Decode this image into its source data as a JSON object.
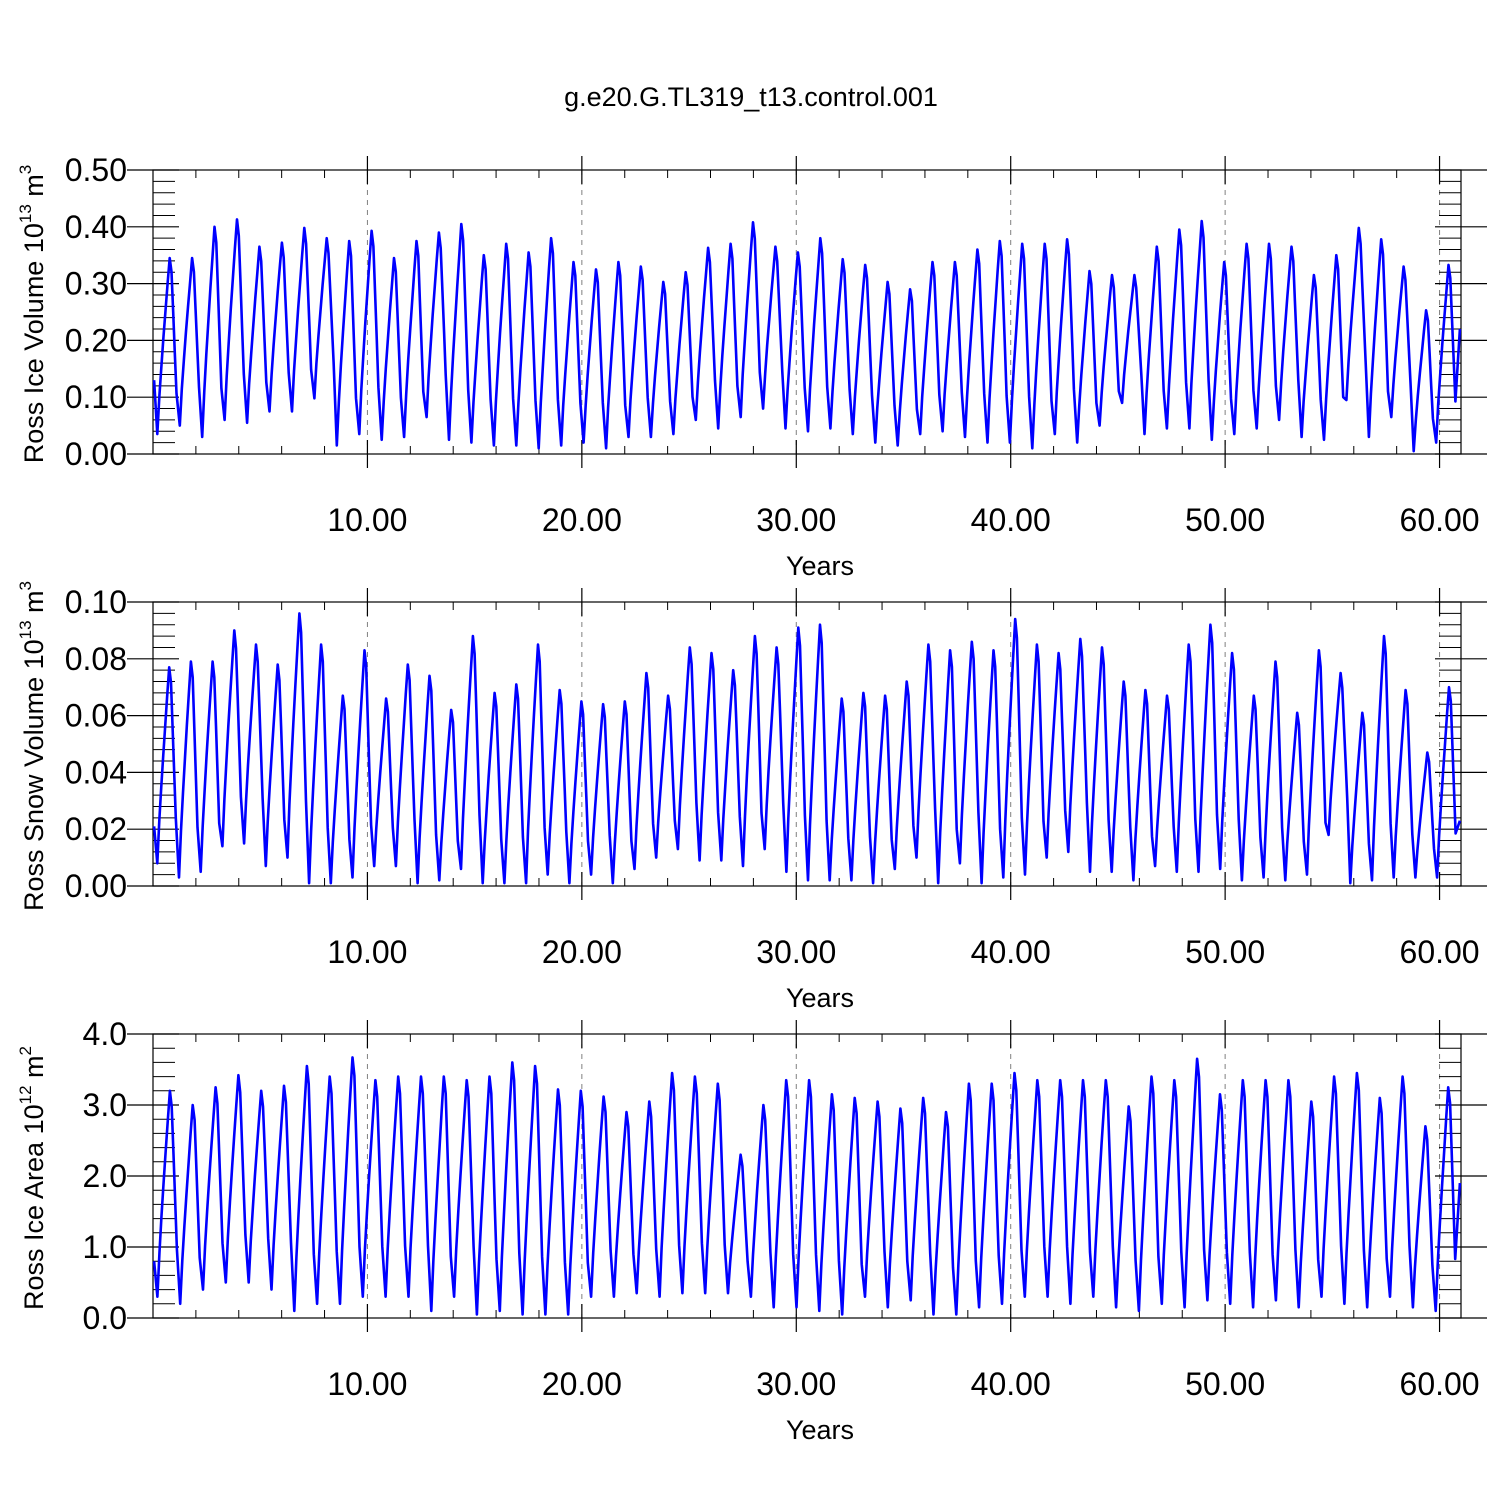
{
  "title": "g.e20.G.TL319_t13.control.001",
  "chart_data": [
    {
      "type": "line",
      "ylabel": "Ross Ice Volume 10",
      "ylabel_sup": "13",
      "ylabel_unit": " m",
      "ylabel_unit_sup": "3",
      "xlabel": "Years",
      "xlim": [
        0,
        61
      ],
      "ylim": [
        0,
        0.5
      ],
      "xticks": [
        10,
        20,
        30,
        40,
        50,
        60
      ],
      "xtick_labels": [
        "10.00",
        "20.00",
        "30.00",
        "40.00",
        "50.00",
        "60.00"
      ],
      "yticks": [
        0,
        0.1,
        0.2,
        0.3,
        0.4,
        0.5
      ],
      "ytick_labels": [
        "0.00",
        "0.10",
        "0.20",
        "0.30",
        "0.40",
        "0.50"
      ],
      "grid": "vertical dashed at major x ticks",
      "color": "#0000ff",
      "base": 0.13,
      "peaks": [
        0.345,
        0.345,
        0.4,
        0.413,
        0.365,
        0.372,
        0.398,
        0.38,
        0.375,
        0.393,
        0.345,
        0.375,
        0.39,
        0.405,
        0.35,
        0.37,
        0.355,
        0.38,
        0.338,
        0.325,
        0.338,
        0.33,
        0.303,
        0.32,
        0.363,
        0.37,
        0.408,
        0.365,
        0.355,
        0.38,
        0.343,
        0.333,
        0.303,
        0.29,
        0.338,
        0.338,
        0.36,
        0.375,
        0.37,
        0.37,
        0.378,
        0.322,
        0.315,
        0.315,
        0.365,
        0.395,
        0.41,
        0.338,
        0.37,
        0.37,
        0.365,
        0.315,
        0.35,
        0.398,
        0.378,
        0.33,
        0.253,
        0.333
      ],
      "troughs": [
        0.035,
        0.05,
        0.03,
        0.06,
        0.055,
        0.075,
        0.075,
        0.098,
        0.015,
        0.035,
        0.025,
        0.03,
        0.065,
        0.025,
        0.02,
        0.015,
        0.015,
        0.01,
        0.015,
        0.02,
        0.01,
        0.03,
        0.03,
        0.035,
        0.06,
        0.045,
        0.065,
        0.08,
        0.045,
        0.04,
        0.045,
        0.035,
        0.02,
        0.015,
        0.035,
        0.04,
        0.03,
        0.02,
        0.02,
        0.01,
        0.035,
        0.02,
        0.05,
        0.09,
        0.035,
        0.045,
        0.045,
        0.025,
        0.035,
        0.045,
        0.06,
        0.03,
        0.025,
        0.095,
        0.03,
        0.065,
        0.005,
        0.02
      ],
      "end": 0.22
    },
    {
      "type": "line",
      "ylabel": "Ross Snow Volume 10",
      "ylabel_sup": "13",
      "ylabel_unit": " m",
      "ylabel_unit_sup": "3",
      "xlabel": "Years",
      "xlim": [
        0,
        61
      ],
      "ylim": [
        0,
        0.1
      ],
      "xticks": [
        10,
        20,
        30,
        40,
        50,
        60
      ],
      "xtick_labels": [
        "10.00",
        "20.00",
        "30.00",
        "40.00",
        "50.00",
        "60.00"
      ],
      "yticks": [
        0,
        0.02,
        0.04,
        0.06,
        0.08,
        0.1
      ],
      "ytick_labels": [
        "0.00",
        "0.02",
        "0.04",
        "0.06",
        "0.08",
        "0.10"
      ],
      "grid": "vertical dashed at major x ticks",
      "color": "#0000ff",
      "base": 0.021,
      "peaks": [
        0.077,
        0.079,
        0.079,
        0.09,
        0.085,
        0.078,
        0.096,
        0.085,
        0.067,
        0.083,
        0.066,
        0.078,
        0.074,
        0.062,
        0.088,
        0.068,
        0.071,
        0.085,
        0.069,
        0.065,
        0.064,
        0.065,
        0.075,
        0.067,
        0.084,
        0.082,
        0.076,
        0.088,
        0.084,
        0.091,
        0.092,
        0.066,
        0.068,
        0.067,
        0.072,
        0.085,
        0.083,
        0.086,
        0.083,
        0.094,
        0.085,
        0.082,
        0.087,
        0.084,
        0.072,
        0.069,
        0.067,
        0.085,
        0.092,
        0.082,
        0.067,
        0.079,
        0.061,
        0.083,
        0.075,
        0.061,
        0.088,
        0.069,
        0.047,
        0.07
      ],
      "troughs": [
        0.008,
        0.003,
        0.005,
        0.014,
        0.015,
        0.007,
        0.01,
        0.001,
        0.001,
        0.003,
        0.007,
        0.007,
        0.001,
        0.002,
        0.006,
        0.001,
        0.001,
        0.001,
        0.004,
        0.001,
        0.004,
        0.001,
        0.006,
        0.01,
        0.013,
        0.009,
        0.009,
        0.007,
        0.013,
        0.005,
        0.002,
        0.002,
        0.002,
        0.001,
        0.006,
        0.01,
        0.001,
        0.008,
        0.001,
        0.003,
        0.004,
        0.01,
        0.012,
        0.005,
        0.005,
        0.002,
        0.007,
        0.005,
        0.005,
        0.006,
        0.002,
        0.003,
        0.002,
        0.004,
        0.018,
        0.001,
        0.002,
        0.003
      ],
      "end": 0.023
    },
    {
      "type": "line",
      "ylabel": "Ross Ice Area 10",
      "ylabel_sup": "12",
      "ylabel_unit": " m",
      "ylabel_unit_sup": "2",
      "xlabel": "Years",
      "xlim": [
        0,
        61
      ],
      "ylim": [
        0,
        4.0
      ],
      "xticks": [
        10,
        20,
        30,
        40,
        50,
        60
      ],
      "xtick_labels": [
        "10.00",
        "20.00",
        "30.00",
        "40.00",
        "50.00",
        "60.00"
      ],
      "yticks": [
        0,
        1,
        2,
        3,
        4
      ],
      "ytick_labels": [
        "0.0",
        "1.0",
        "2.0",
        "3.0",
        "4.0"
      ],
      "grid": "vertical dashed at major x ticks",
      "color": "#0000ff",
      "base": 0.8,
      "peaks": [
        3.2,
        3.0,
        3.25,
        3.42,
        3.2,
        3.27,
        3.55,
        3.4,
        3.67,
        3.35,
        3.4,
        3.4,
        3.4,
        3.35,
        3.4,
        3.6,
        3.55,
        3.22,
        3.2,
        3.12,
        2.9,
        3.05,
        3.45,
        3.4,
        3.3,
        2.3,
        3.0,
        3.35,
        3.35,
        3.15,
        3.1,
        3.05,
        2.95,
        3.1,
        2.9,
        3.3,
        3.3,
        3.45,
        3.35,
        3.35,
        3.35,
        3.35,
        2.98,
        3.4,
        3.35,
        3.65,
        3.15,
        3.35,
        3.35,
        3.35,
        3.05,
        3.4,
        3.45,
        3.1,
        3.4,
        2.7,
        3.25
      ],
      "troughs": [
        0.3,
        0.2,
        0.4,
        0.5,
        0.5,
        0.4,
        0.1,
        0.2,
        0.2,
        0.3,
        0.3,
        0.3,
        0.1,
        0.3,
        0.05,
        0.1,
        0.05,
        0.05,
        0.05,
        0.3,
        0.3,
        0.35,
        0.3,
        0.35,
        0.35,
        0.35,
        0.3,
        0.15,
        0.15,
        0.1,
        0.05,
        0.3,
        0.15,
        0.25,
        0.05,
        0.05,
        0.15,
        0.2,
        0.3,
        0.3,
        0.2,
        0.3,
        0.15,
        0.1,
        0.2,
        0.15,
        0.25,
        0.2,
        0.15,
        0.25,
        0.15,
        0.3,
        0.2,
        0.15,
        0.3,
        0.15,
        0.1
      ],
      "end": 1.9
    }
  ]
}
